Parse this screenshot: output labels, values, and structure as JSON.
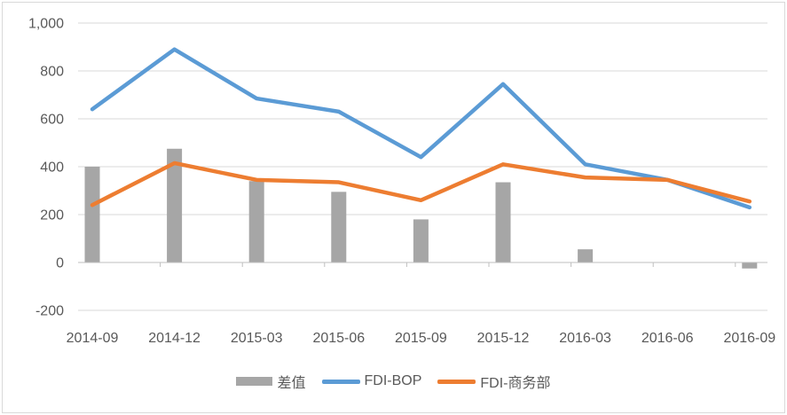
{
  "chart_data": {
    "type": "combo",
    "title": "",
    "categories": [
      "2014-09",
      "2014-12",
      "2015-03",
      "2015-06",
      "2015-09",
      "2015-12",
      "2016-03",
      "2016-06",
      "2016-09"
    ],
    "series": [
      {
        "name": "差值",
        "type": "bar",
        "color": "#A6A6A6",
        "values": [
          400,
          475,
          340,
          295,
          180,
          335,
          55,
          0,
          -25
        ]
      },
      {
        "name": "FDI-BOP",
        "type": "line",
        "color": "#5B9BD5",
        "values": [
          640,
          890,
          685,
          630,
          440,
          745,
          410,
          345,
          230
        ]
      },
      {
        "name": "FDI-商务部",
        "type": "line",
        "color": "#ED7D31",
        "values": [
          240,
          415,
          345,
          335,
          260,
          410,
          355,
          345,
          255
        ]
      }
    ],
    "y_axis": {
      "min": -200,
      "max": 1000,
      "step": 200,
      "tick_labels": [
        "-200",
        "0",
        "200",
        "400",
        "600",
        "800",
        "1,000"
      ]
    },
    "x_axis": {
      "tick_labels": [
        "2014-09",
        "2014-12",
        "2015-03",
        "2015-06",
        "2015-09",
        "2015-12",
        "2016-03",
        "2016-06",
        "2016-09"
      ]
    },
    "legend_position": "bottom",
    "grid": true,
    "colors": {
      "gridline": "#D9D9D9",
      "axis": "#BFBFBF",
      "tick_text": "#595959",
      "background": "#FFFFFF",
      "border": "#D9D9D9"
    }
  }
}
